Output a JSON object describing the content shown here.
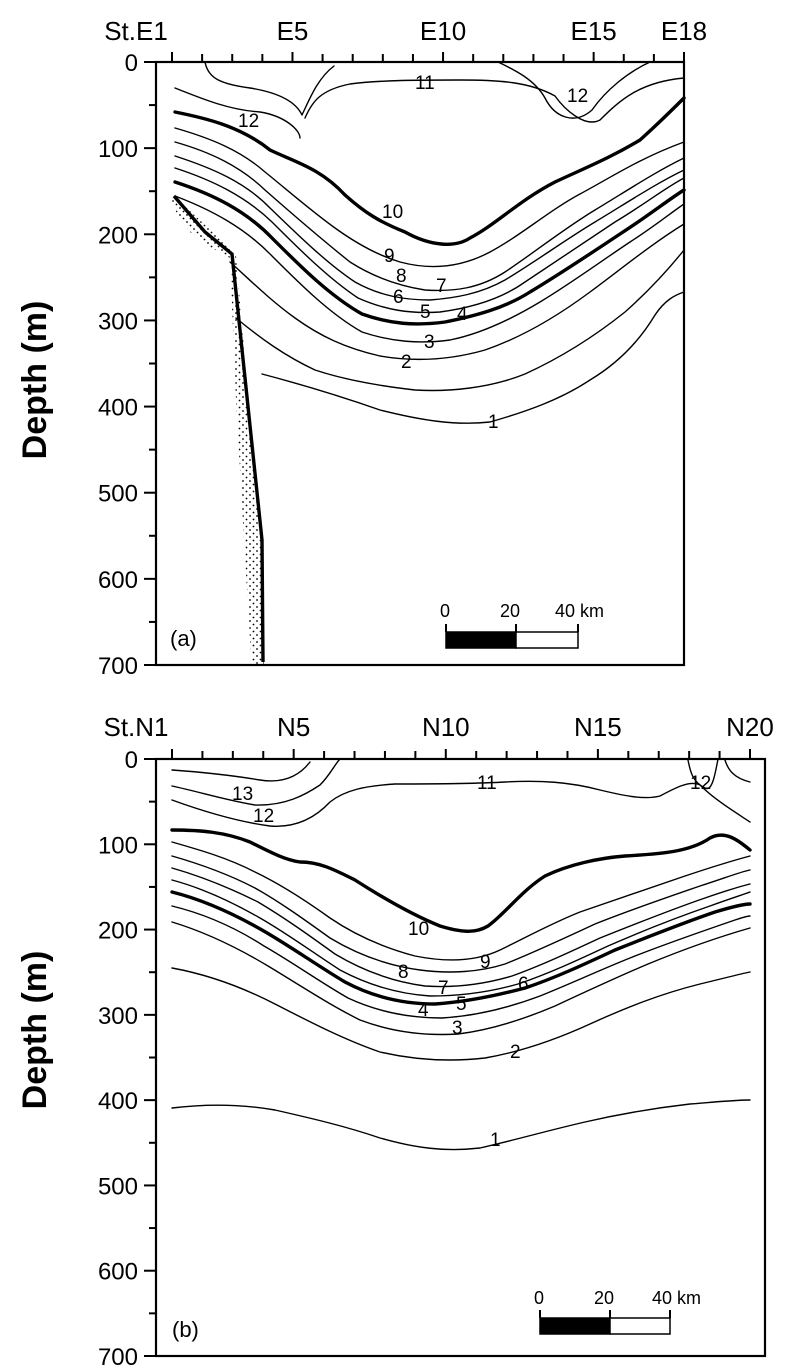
{
  "chart_data": [
    {
      "type": "contour",
      "panel_label": "(a)",
      "ylabel": "Depth (m)",
      "y_ticks": [
        "0",
        "100",
        "200",
        "300",
        "400",
        "500",
        "600",
        "700"
      ],
      "ylim": [
        0,
        700
      ],
      "y_reversed": true,
      "station_labels": [
        "St.E1",
        "E5",
        "E10",
        "E15",
        "E18"
      ],
      "station_count": 18,
      "scale_bar": {
        "ticks": [
          "0",
          "20",
          "40 km"
        ]
      },
      "bottom_profile": true,
      "isolines": [
        {
          "label": "12",
          "values": [
            12
          ],
          "bold": false
        },
        {
          "label": "11",
          "values": [
            11
          ],
          "bold": false
        },
        {
          "label": "10",
          "values": [
            10
          ],
          "bold": true
        },
        {
          "label": "9",
          "values": [
            9
          ],
          "bold": false
        },
        {
          "label": "8",
          "values": [
            8
          ],
          "bold": false
        },
        {
          "label": "7",
          "values": [
            7
          ],
          "bold": false
        },
        {
          "label": "6",
          "values": [
            6
          ],
          "bold": false
        },
        {
          "label": "5",
          "values": [
            5
          ],
          "bold": true
        },
        {
          "label": "4",
          "values": [
            4
          ],
          "bold": false
        },
        {
          "label": "3",
          "values": [
            3
          ],
          "bold": false
        },
        {
          "label": "2",
          "values": [
            2
          ],
          "bold": false
        },
        {
          "label": "1",
          "values": [
            1
          ],
          "bold": false
        }
      ]
    },
    {
      "type": "contour",
      "panel_label": "(b)",
      "ylabel": "Depth (m)",
      "y_ticks": [
        "0",
        "100",
        "200",
        "300",
        "400",
        "500",
        "600",
        "700"
      ],
      "ylim": [
        0,
        700
      ],
      "y_reversed": true,
      "station_labels": [
        "St.N1",
        "N5",
        "N10",
        "N15",
        "N20"
      ],
      "station_count": 20,
      "scale_bar": {
        "ticks": [
          "0",
          "20",
          "40 km"
        ]
      },
      "bottom_profile": false,
      "isolines": [
        {
          "label": "13",
          "values": [
            13
          ],
          "bold": false
        },
        {
          "label": "12",
          "values": [
            12
          ],
          "bold": false
        },
        {
          "label": "11",
          "values": [
            11
          ],
          "bold": false
        },
        {
          "label": "10",
          "values": [
            10
          ],
          "bold": true
        },
        {
          "label": "9",
          "values": [
            9
          ],
          "bold": false
        },
        {
          "label": "8",
          "values": [
            8
          ],
          "bold": false
        },
        {
          "label": "7",
          "values": [
            7
          ],
          "bold": false
        },
        {
          "label": "6",
          "values": [
            6
          ],
          "bold": false
        },
        {
          "label": "5",
          "values": [
            5
          ],
          "bold": true
        },
        {
          "label": "4",
          "values": [
            4
          ],
          "bold": false
        },
        {
          "label": "3",
          "values": [
            3
          ],
          "bold": false
        },
        {
          "label": "2",
          "values": [
            2
          ],
          "bold": false
        },
        {
          "label": "1",
          "values": [
            1
          ],
          "bold": false
        }
      ]
    }
  ]
}
